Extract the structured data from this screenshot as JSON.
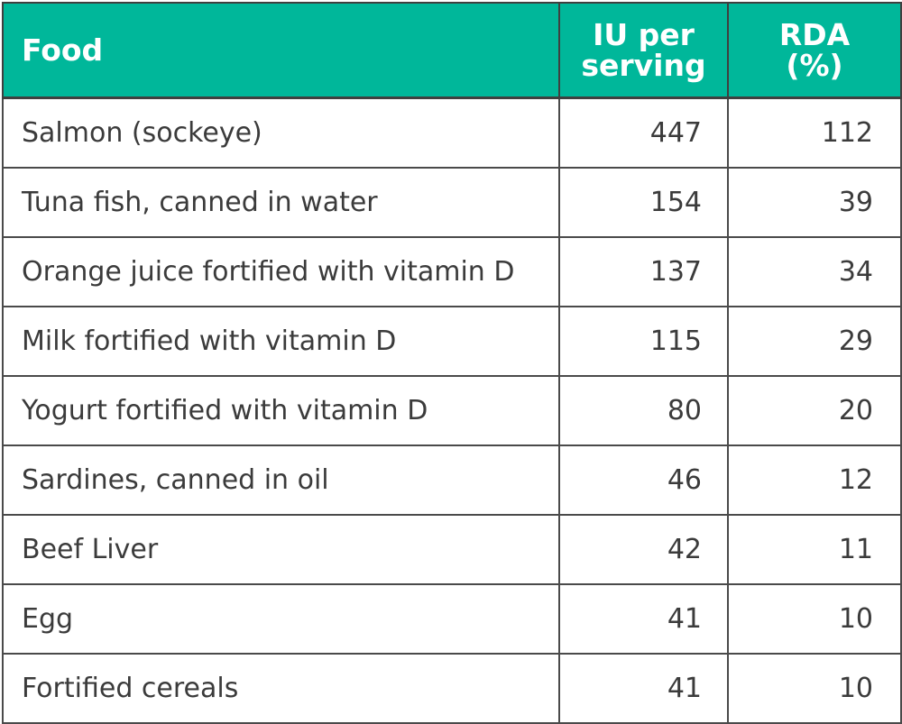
{
  "table": {
    "headers": {
      "food": "Food",
      "iu": "IU per serving",
      "rda": "RDA (%)"
    },
    "rows": [
      {
        "food": "Salmon (sockeye)",
        "iu": "447",
        "rda": "112"
      },
      {
        "food": "Tuna fish, canned in water",
        "iu": "154",
        "rda": "39"
      },
      {
        "food": "Orange juice fortified with vitamin D",
        "iu": "137",
        "rda": "34"
      },
      {
        "food": "Milk fortified with vitamin D",
        "iu": "115",
        "rda": "29"
      },
      {
        "food": "Yogurt fortified with vitamin D",
        "iu": "80",
        "rda": "20"
      },
      {
        "food": "Sardines, canned in oil",
        "iu": "46",
        "rda": "12"
      },
      {
        "food": "Beef Liver",
        "iu": "42",
        "rda": "11"
      },
      {
        "food": "Egg",
        "iu": "41",
        "rda": "10"
      },
      {
        "food": "Fortified cereals",
        "iu": "41",
        "rda": "10"
      }
    ]
  },
  "colors": {
    "header_bg": "#00b79a",
    "header_text": "#ffffff",
    "body_text": "#3b3b3b",
    "border": "#4a4a4a"
  }
}
